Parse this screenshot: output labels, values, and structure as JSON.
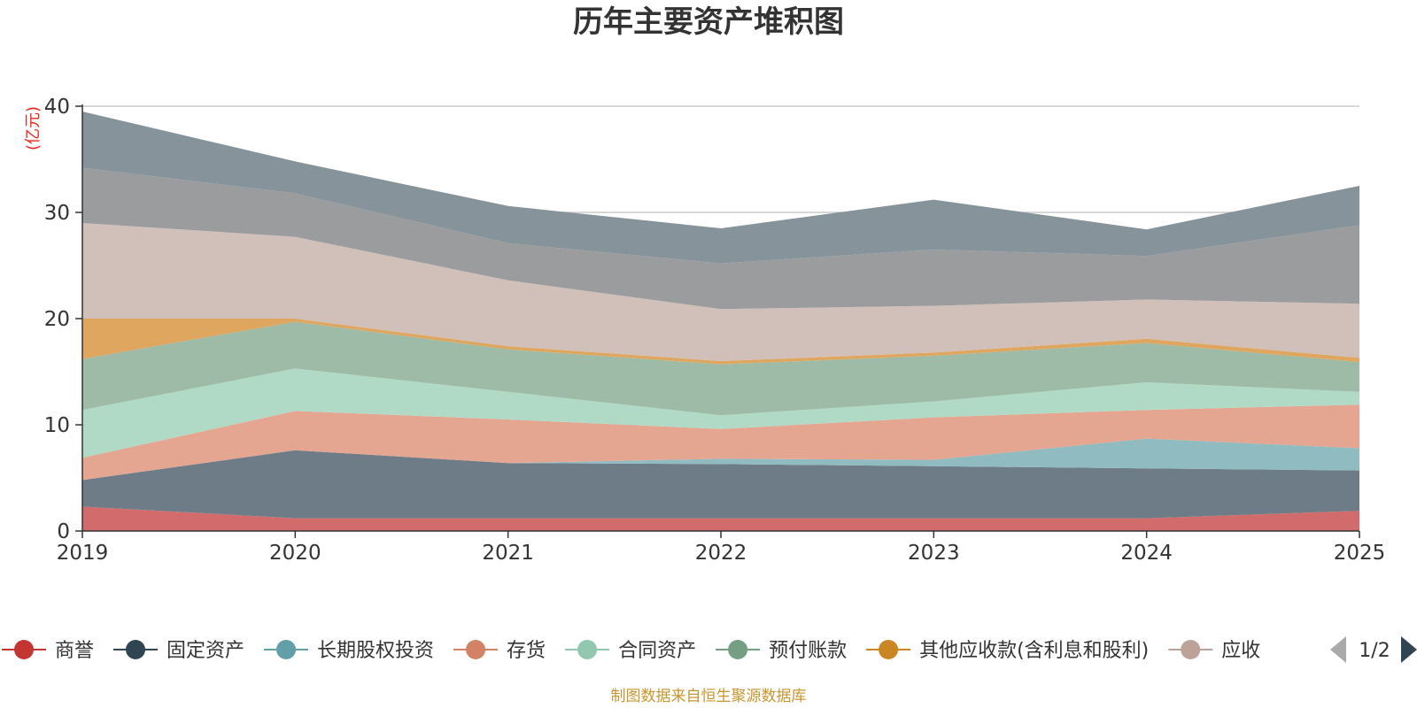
{
  "chart_data": {
    "type": "area",
    "stacked": true,
    "title": "历年主要资产堆积图",
    "ylabel": "(亿元)",
    "ylim": [
      0,
      40
    ],
    "yticks": [
      0,
      10,
      20,
      30,
      40
    ],
    "grid": true,
    "x": [
      "2019",
      "2020",
      "2021",
      "2022",
      "2023",
      "2024",
      "2025"
    ],
    "series": [
      {
        "name": "商誉",
        "color": "#d26b6b",
        "values": [
          2.3,
          1.2,
          1.2,
          1.2,
          1.2,
          1.2,
          1.9
        ]
      },
      {
        "name": "固定资产",
        "color": "#6e7c87",
        "values": [
          2.5,
          6.4,
          5.2,
          5.1,
          4.9,
          4.7,
          3.8
        ]
      },
      {
        "name": "长期股权投资",
        "color": "#8fbbc1",
        "values": [
          0.0,
          0.0,
          0.0,
          0.5,
          0.6,
          2.8,
          2.1
        ]
      },
      {
        "name": "存货",
        "color": "#e4a591",
        "values": [
          2.1,
          3.7,
          4.1,
          2.8,
          4.0,
          2.7,
          4.1
        ]
      },
      {
        "name": "合同资产",
        "color": "#b0dac6",
        "values": [
          4.5,
          4.0,
          2.6,
          1.3,
          1.5,
          2.6,
          1.2
        ]
      },
      {
        "name": "预付账款",
        "color": "#9dbba6",
        "values": [
          4.8,
          4.4,
          4.0,
          4.8,
          4.3,
          3.7,
          2.8
        ]
      },
      {
        "name": "其他应收款(含利息和股利)",
        "color": "#dea65e",
        "values": [
          3.8,
          0.3,
          0.3,
          0.3,
          0.3,
          0.4,
          0.4
        ]
      },
      {
        "name": "应收",
        "color": "#d1bfb9",
        "values": [
          9.0,
          7.7,
          6.2,
          4.9,
          4.4,
          3.7,
          5.1
        ]
      },
      {
        "name": "",
        "color": "#9b9c9e",
        "values": [
          5.2,
          4.1,
          3.5,
          4.3,
          5.3,
          4.1,
          7.4
        ]
      },
      {
        "name": "",
        "color": "#86939b",
        "values": [
          5.3,
          3.0,
          3.5,
          3.3,
          4.7,
          2.5,
          3.7
        ]
      }
    ],
    "legend": {
      "position": "bottom",
      "page_label": "1/2",
      "items": [
        {
          "name": "商誉",
          "color": "#c23531"
        },
        {
          "name": "固定资产",
          "color": "#2f4554"
        },
        {
          "name": "长期股权投资",
          "color": "#61a0a8"
        },
        {
          "name": "存货",
          "color": "#d48265"
        },
        {
          "name": "合同资产",
          "color": "#91c7ae"
        },
        {
          "name": "预付账款",
          "color": "#749f83"
        },
        {
          "name": "其他应收款(含利息和股利)",
          "color": "#ca8622"
        },
        {
          "name": "应收",
          "color": "#bda29a"
        }
      ]
    },
    "source": "制图数据来自恒生聚源数据库"
  }
}
